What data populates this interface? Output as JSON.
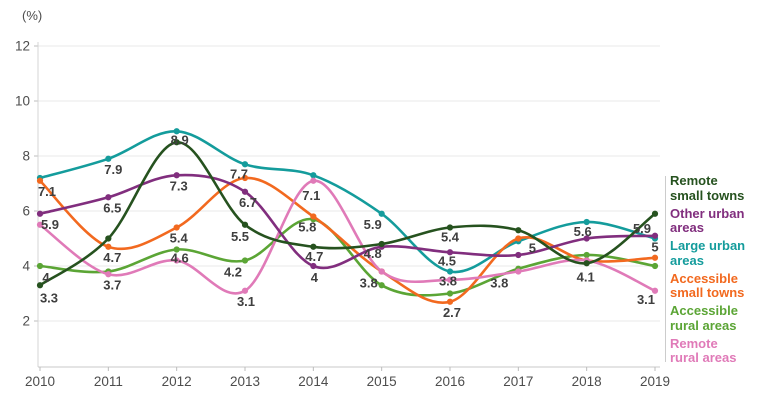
{
  "chart_data": {
    "type": "line",
    "unit_label": "(%)",
    "x": [
      2010,
      2011,
      2012,
      2013,
      2014,
      2015,
      2016,
      2017,
      2018,
      2019
    ],
    "yticks": [
      2,
      4,
      6,
      8,
      10,
      12
    ],
    "ylim": [
      2,
      12
    ],
    "grid": true,
    "legend_position": "right",
    "series": [
      {
        "id": "remote_small_towns",
        "name": "Remote small towns",
        "label_lines": [
          "Remote",
          "small towns"
        ],
        "color": "#26521f",
        "values": [
          3.3,
          5.0,
          8.5,
          5.5,
          4.7,
          4.8,
          5.4,
          5.3,
          4.1,
          5.9
        ]
      },
      {
        "id": "other_urban",
        "name": "Other urban areas",
        "label_lines": [
          "Other urban",
          "areas"
        ],
        "color": "#812e7e",
        "values": [
          5.9,
          6.5,
          7.3,
          6.7,
          4.0,
          4.7,
          4.5,
          4.4,
          5.0,
          5.1
        ]
      },
      {
        "id": "large_urban",
        "name": "Large urban areas",
        "label_lines": [
          "Large urban",
          "areas"
        ],
        "color": "#149c9c",
        "values": [
          7.2,
          7.9,
          8.9,
          7.7,
          7.3,
          5.9,
          3.8,
          4.9,
          5.6,
          5.0
        ]
      },
      {
        "id": "accessible_small_towns",
        "name": "Accessible small towns",
        "label_lines": [
          "Accessible",
          "small towns"
        ],
        "color": "#f2691f",
        "values": [
          7.1,
          4.7,
          5.4,
          7.2,
          5.8,
          3.8,
          2.7,
          5.0,
          4.2,
          4.3
        ]
      },
      {
        "id": "accessible_rural",
        "name": "Accessible rural areas",
        "label_lines": [
          "Accessible",
          "rural areas"
        ],
        "color": "#5ba535",
        "values": [
          4.0,
          3.8,
          4.6,
          4.2,
          5.7,
          3.3,
          3.0,
          3.9,
          4.4,
          4.0
        ]
      },
      {
        "id": "remote_rural",
        "name": "Remote rural areas",
        "label_lines": [
          "Remote",
          "rural areas"
        ],
        "color": "#e07ab8",
        "values": [
          5.5,
          3.7,
          4.2,
          3.1,
          7.1,
          3.8,
          3.5,
          3.8,
          4.2,
          3.1
        ]
      }
    ],
    "point_labels": [
      {
        "series": "accessible_small_towns",
        "year": 2010,
        "text": "7.1"
      },
      {
        "series": "other_urban",
        "year": 2010,
        "text": "5.9"
      },
      {
        "series": "accessible_rural",
        "year": 2010,
        "text": "4"
      },
      {
        "series": "remote_small_towns",
        "year": 2010,
        "text": "3.3"
      },
      {
        "series": "large_urban",
        "year": 2011,
        "text": "7.9"
      },
      {
        "series": "other_urban",
        "year": 2011,
        "text": "6.5"
      },
      {
        "series": "accessible_small_towns",
        "year": 2011,
        "text": "4.7"
      },
      {
        "series": "remote_rural",
        "year": 2011,
        "text": "3.7"
      },
      {
        "series": "large_urban",
        "year": 2012,
        "text": "8.9"
      },
      {
        "series": "other_urban",
        "year": 2012,
        "text": "7.3"
      },
      {
        "series": "accessible_small_towns",
        "year": 2012,
        "text": "5.4"
      },
      {
        "series": "accessible_rural",
        "year": 2012,
        "text": "4.6"
      },
      {
        "series": "large_urban",
        "year": 2013,
        "text": "7.7"
      },
      {
        "series": "other_urban",
        "year": 2013,
        "text": "6.7"
      },
      {
        "series": "remote_small_towns",
        "year": 2013,
        "text": "5.5"
      },
      {
        "series": "accessible_rural",
        "year": 2013,
        "text": "4.2"
      },
      {
        "series": "remote_rural",
        "year": 2013,
        "text": "3.1"
      },
      {
        "series": "remote_rural",
        "year": 2014,
        "text": "7.1"
      },
      {
        "series": "accessible_small_towns",
        "year": 2014,
        "text": "5.8"
      },
      {
        "series": "remote_small_towns",
        "year": 2014,
        "text": "4.7"
      },
      {
        "series": "other_urban",
        "year": 2014,
        "text": "4"
      },
      {
        "series": "large_urban",
        "year": 2015,
        "text": "5.9"
      },
      {
        "series": "remote_small_towns",
        "year": 2015,
        "text": "4.8"
      },
      {
        "series": "remote_rural",
        "year": 2015,
        "text": "3.8"
      },
      {
        "series": "remote_small_towns",
        "year": 2016,
        "text": "5.4"
      },
      {
        "series": "other_urban",
        "year": 2016,
        "text": "4.5"
      },
      {
        "series": "large_urban",
        "year": 2016,
        "text": "3.8"
      },
      {
        "series": "accessible_small_towns",
        "year": 2016,
        "text": "2.7"
      },
      {
        "series": "accessible_small_towns",
        "year": 2017,
        "text": "5"
      },
      {
        "series": "remote_rural",
        "year": 2017,
        "text": "3.8"
      },
      {
        "series": "large_urban",
        "year": 2018,
        "text": "5.6"
      },
      {
        "series": "remote_small_towns",
        "year": 2018,
        "text": "4.1"
      },
      {
        "series": "remote_small_towns",
        "year": 2019,
        "text": "5.9"
      },
      {
        "series": "large_urban",
        "year": 2019,
        "text": "5"
      },
      {
        "series": "remote_rural",
        "year": 2019,
        "text": "3.1"
      }
    ]
  }
}
